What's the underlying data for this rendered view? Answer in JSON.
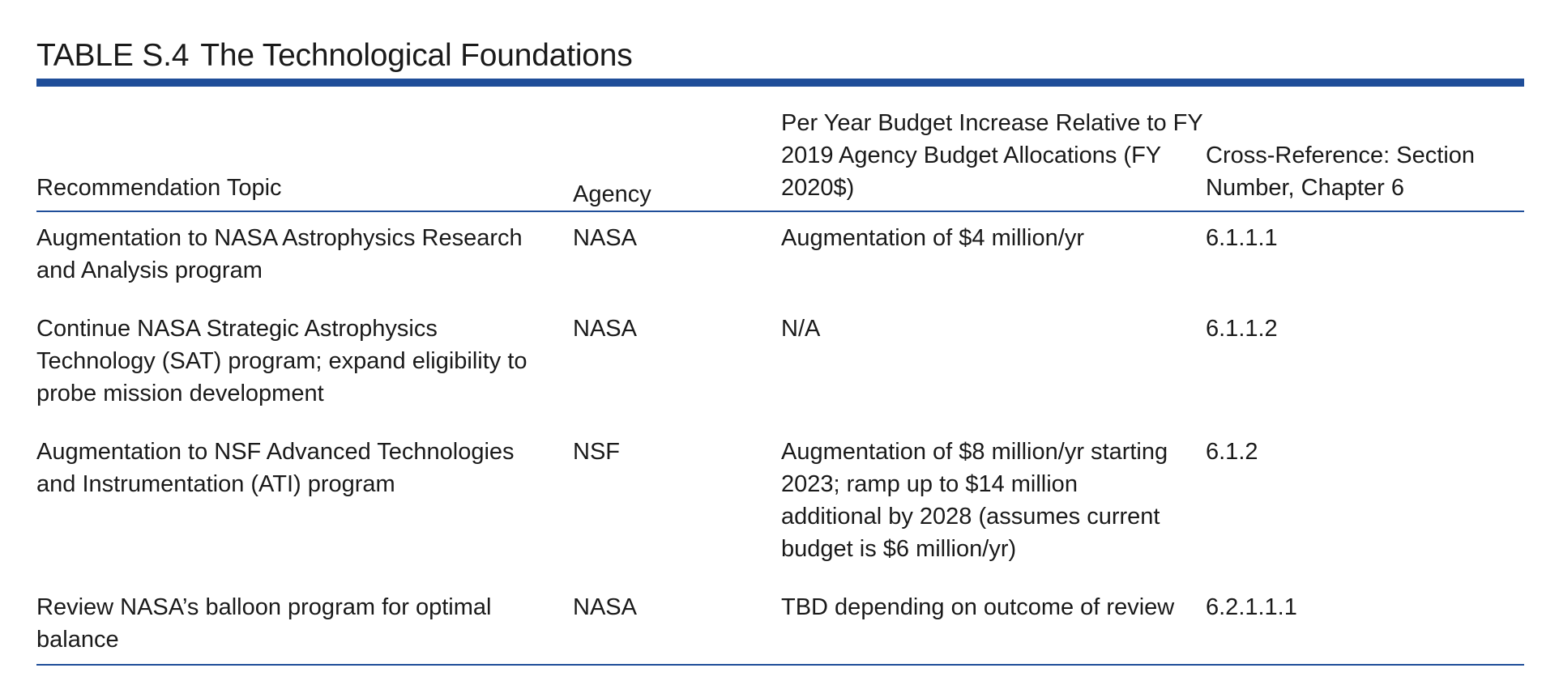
{
  "table": {
    "title_prefix": "TABLE S.4",
    "title_text": "The Technological Foundations",
    "headers": {
      "topic": "Recommendation Topic",
      "agency": "Agency",
      "budget": "Per Year Budget Increase Relative to FY 2019 Agency Budget Allocations (FY 2020$)",
      "cross_ref": "Cross-Reference: Section Number, Chapter 6"
    },
    "rows": [
      {
        "topic": "Augmentation to NASA Astrophysics Research and Analysis program",
        "agency": "NASA",
        "budget": "Augmentation of $4 million/yr",
        "cross_ref": "6.1.1.1"
      },
      {
        "topic": "Continue NASA Strategic Astrophysics Technology (SAT) program; expand eligibility to probe mission development",
        "agency": "NASA",
        "budget": "N/A",
        "cross_ref": "6.1.1.2"
      },
      {
        "topic": "Augmentation to NSF Advanced Technologies and Instrumentation (ATI) program",
        "agency": "NSF",
        "budget": "Augmentation of $8 million/yr starting 2023; ramp up to $14 million additional by 2028 (assumes current budget is $6 million/yr)",
        "cross_ref": "6.1.2"
      },
      {
        "topic": "Review NASA’s balloon program for optimal balance",
        "agency": "NASA",
        "budget": "TBD depending on outcome of review",
        "cross_ref": "6.2.1.1.1"
      }
    ],
    "accent_color": "#1f4e99"
  }
}
